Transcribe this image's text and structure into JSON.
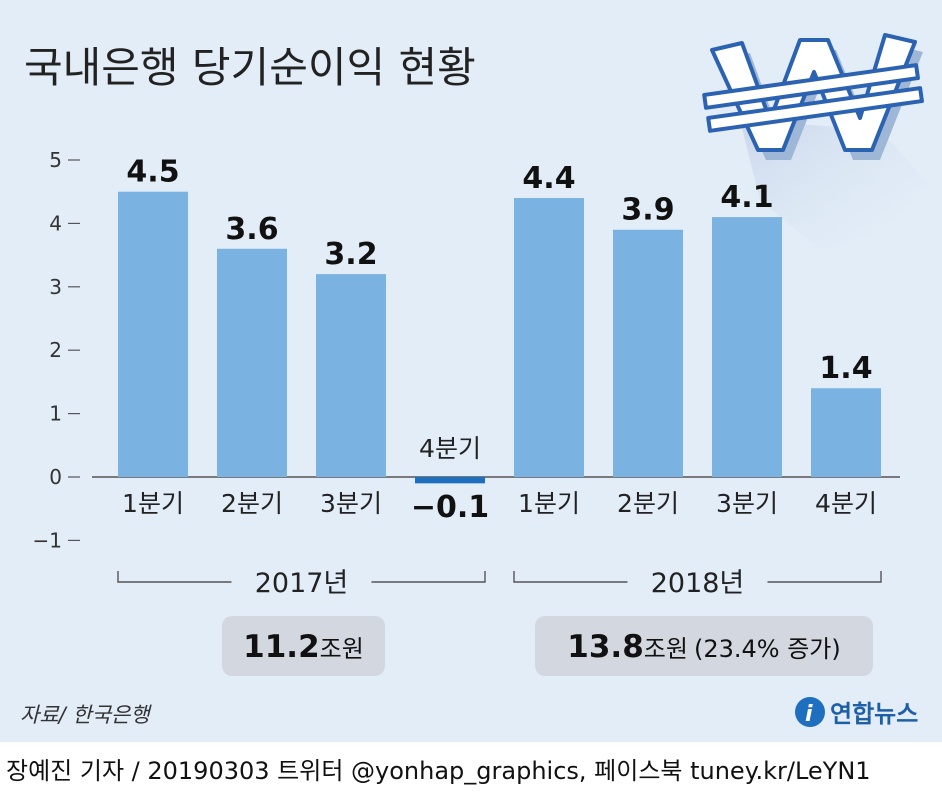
{
  "title": "국내은행 당기순이익 현황",
  "chart_data": {
    "type": "bar",
    "title": "국내은행 당기순이익 현황",
    "ylim": [
      -1,
      5
    ],
    "yticks": [
      5,
      4,
      3,
      2,
      1,
      0,
      -1
    ],
    "yticks_labels": [
      "5",
      "4",
      "3",
      "2",
      "1",
      "0",
      "−1"
    ],
    "grid": false,
    "categories": [
      "1분기",
      "2분기",
      "3분기",
      "4분기",
      "1분기",
      "2분기",
      "3분기",
      "4분기"
    ],
    "values": [
      4.5,
      3.6,
      3.2,
      -0.1,
      4.4,
      3.9,
      4.1,
      1.4
    ],
    "value_labels": [
      "4.5",
      "3.6",
      "3.2",
      "−0.1",
      "4.4",
      "3.9",
      "4.1",
      "1.4"
    ],
    "groups": [
      {
        "label": "2017년",
        "total_value": "11.2",
        "total_unit": "조원",
        "total_note": ""
      },
      {
        "label": "2018년",
        "total_value": "13.8",
        "total_unit": "조원",
        "total_note": "(23.4% 증가)"
      }
    ],
    "colors": {
      "bar": "#7ab3e2",
      "negative_bar": "#1e6fc0",
      "background": "#e3edf8"
    }
  },
  "source": "자료/ 한국은행",
  "logo_text": "연합뉴스",
  "credit": "장예진 기자 / 20190303 트위터 @yonhap_graphics, 페이스북 tuney.kr/LeYN1"
}
